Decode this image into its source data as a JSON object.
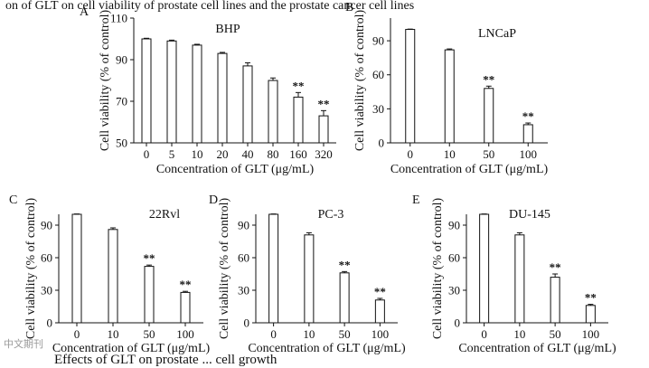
{
  "header_caption": "on of GLT on cell viability of prostate cell lines and the prostate cancer cell lines",
  "footer_caption": "Effects of GLT on prostate ... cell growth",
  "watermark": "中文期刊",
  "chart_data": [
    {
      "panel": "A",
      "title": "BHP",
      "type": "bar",
      "categories": [
        "0",
        "5",
        "10",
        "20",
        "40",
        "80",
        "160",
        "320"
      ],
      "values": [
        100,
        99,
        97,
        93,
        87,
        80,
        72,
        63
      ],
      "errors": [
        0.3,
        0.4,
        0.4,
        0.5,
        1.5,
        1.2,
        2.2,
        2.5
      ],
      "significance": [
        "",
        "",
        "",
        "",
        "",
        "",
        "**",
        "**"
      ],
      "yticks": [
        50,
        70,
        90,
        110
      ],
      "ylim": [
        50,
        110
      ],
      "xlabel": "Concentration of GLT (μg/mL)",
      "ylabel": "Cell viability (% of control)"
    },
    {
      "panel": "B",
      "title": "LNCaP",
      "type": "bar",
      "categories": [
        "0",
        "10",
        "50",
        "100"
      ],
      "values": [
        100,
        82,
        48,
        16
      ],
      "errors": [
        0.3,
        0.8,
        2.0,
        1.5
      ],
      "significance": [
        "",
        "",
        "**",
        "**"
      ],
      "yticks": [
        0,
        30,
        60,
        90
      ],
      "ylim": [
        0,
        110
      ],
      "xlabel": "Concentration of GLT (μg/mL)",
      "ylabel": "Cell viability (% of control)"
    },
    {
      "panel": "C",
      "title": "22Rvl",
      "type": "bar",
      "categories": [
        "0",
        "10",
        "50",
        "100"
      ],
      "values": [
        100,
        86,
        52,
        28
      ],
      "errors": [
        0.3,
        1.5,
        1.2,
        1.0
      ],
      "significance": [
        "",
        "",
        "**",
        "**"
      ],
      "yticks": [
        0,
        30,
        60,
        90
      ],
      "ylim": [
        0,
        100
      ],
      "xlabel": "Concentration of GLT (μg/mL)",
      "ylabel": "Cell viability (% of control)"
    },
    {
      "panel": "D",
      "title": "PC-3",
      "type": "bar",
      "categories": [
        "0",
        "10",
        "50",
        "100"
      ],
      "values": [
        100,
        81,
        46,
        21
      ],
      "errors": [
        0.3,
        2.0,
        1.2,
        1.5
      ],
      "significance": [
        "",
        "",
        "**",
        "**"
      ],
      "yticks": [
        0,
        30,
        60,
        90
      ],
      "ylim": [
        0,
        100
      ],
      "xlabel": "Concentration of GLT (μg/mL)",
      "ylabel": "Cell viability (% of control)"
    },
    {
      "panel": "E",
      "title": "DU-145",
      "type": "bar",
      "categories": [
        "0",
        "10",
        "50",
        "100"
      ],
      "values": [
        100,
        81,
        42,
        16
      ],
      "errors": [
        0.3,
        2.0,
        3.0,
        1.0
      ],
      "significance": [
        "",
        "",
        "**",
        "**"
      ],
      "yticks": [
        0,
        30,
        60,
        90
      ],
      "ylim": [
        0,
        100
      ],
      "xlabel": "Concentration of GLT (μg/mL)",
      "ylabel": "Cell viability (% of control)"
    }
  ]
}
